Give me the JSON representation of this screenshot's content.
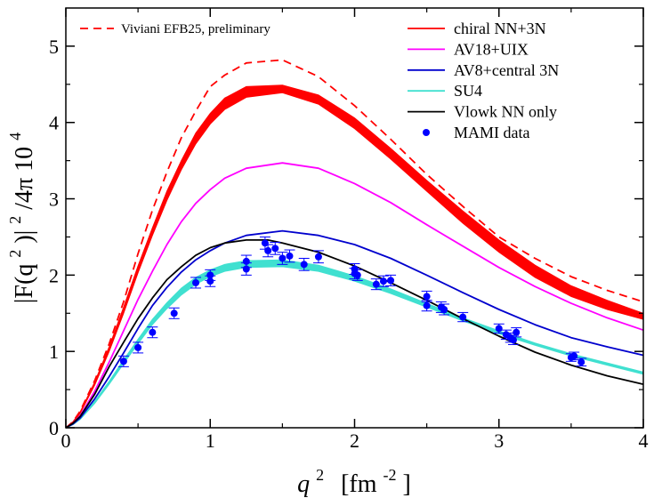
{
  "chart_data": {
    "type": "line",
    "title": "",
    "xlabel": {
      "base": "q",
      "exp": "2",
      "unit_open": "[fm",
      "unit_exp": "-2",
      "unit_close": "]"
    },
    "ylabel": {
      "p1": "|F(q",
      "e1": "2",
      "p2": ")|",
      "e2": "2",
      "p3": "/4π  10",
      "e3": "4"
    },
    "xlim": [
      0,
      4
    ],
    "ylim": [
      0,
      5.5
    ],
    "xticks": [
      0,
      1,
      2,
      3,
      4
    ],
    "yticks": [
      0,
      1,
      2,
      3,
      4,
      5
    ],
    "grid": false,
    "legend_position": "top-right",
    "series": [
      {
        "name": "Viviani EFB25, preliminary",
        "color": "#ff0000",
        "style": "dashed",
        "x": [
          0,
          0.05,
          0.1,
          0.2,
          0.3,
          0.4,
          0.5,
          0.6,
          0.7,
          0.8,
          0.9,
          1.0,
          1.1,
          1.25,
          1.5,
          1.75,
          2.0,
          2.25,
          2.5,
          2.75,
          3.0,
          3.25,
          3.5,
          3.75,
          4.0
        ],
        "y": [
          0,
          0.08,
          0.22,
          0.62,
          1.1,
          1.65,
          2.28,
          2.85,
          3.35,
          3.8,
          4.15,
          4.47,
          4.62,
          4.78,
          4.82,
          4.6,
          4.22,
          3.78,
          3.32,
          2.9,
          2.5,
          2.22,
          1.98,
          1.8,
          1.65
        ]
      },
      {
        "name": "chiral NN+3N",
        "color": "#ff0000",
        "style": "band",
        "x": [
          0,
          0.05,
          0.1,
          0.2,
          0.3,
          0.4,
          0.5,
          0.6,
          0.7,
          0.8,
          0.9,
          1.0,
          1.1,
          1.25,
          1.5,
          1.75,
          2.0,
          2.25,
          2.5,
          2.75,
          3.0,
          3.25,
          3.5,
          3.75,
          4.0
        ],
        "y_low": [
          0,
          0.07,
          0.19,
          0.56,
          1.0,
          1.5,
          2.03,
          2.52,
          2.98,
          3.38,
          3.72,
          3.98,
          4.17,
          4.33,
          4.39,
          4.24,
          3.92,
          3.52,
          3.1,
          2.68,
          2.3,
          1.97,
          1.72,
          1.55,
          1.42
        ],
        "y_high": [
          0,
          0.08,
          0.21,
          0.6,
          1.06,
          1.58,
          2.12,
          2.62,
          3.1,
          3.5,
          3.86,
          4.12,
          4.32,
          4.47,
          4.49,
          4.36,
          4.06,
          3.66,
          3.24,
          2.84,
          2.46,
          2.13,
          1.86,
          1.67,
          1.5
        ]
      },
      {
        "name": "AV18+UIX",
        "color": "#ff00ff",
        "style": "solid",
        "x": [
          0,
          0.05,
          0.1,
          0.2,
          0.3,
          0.4,
          0.5,
          0.6,
          0.7,
          0.8,
          0.9,
          1.0,
          1.1,
          1.25,
          1.5,
          1.75,
          2.0,
          2.25,
          2.5,
          2.75,
          3.0,
          3.25,
          3.5,
          3.75,
          4.0
        ],
        "y": [
          0,
          0.06,
          0.16,
          0.48,
          0.86,
          1.27,
          1.68,
          2.05,
          2.4,
          2.7,
          2.94,
          3.12,
          3.27,
          3.4,
          3.47,
          3.4,
          3.2,
          2.95,
          2.66,
          2.38,
          2.1,
          1.85,
          1.63,
          1.44,
          1.28
        ]
      },
      {
        "name": "AV8+central 3N",
        "color": "#0000cd",
        "style": "solid",
        "x": [
          0,
          0.05,
          0.1,
          0.2,
          0.3,
          0.4,
          0.5,
          0.6,
          0.7,
          0.8,
          0.9,
          1.0,
          1.1,
          1.25,
          1.5,
          1.75,
          2.0,
          2.25,
          2.5,
          2.75,
          3.0,
          3.25,
          3.5,
          3.75,
          4.0
        ],
        "y": [
          0,
          0.05,
          0.13,
          0.38,
          0.67,
          0.98,
          1.3,
          1.6,
          1.84,
          2.04,
          2.2,
          2.32,
          2.42,
          2.52,
          2.58,
          2.52,
          2.4,
          2.22,
          2.0,
          1.77,
          1.55,
          1.35,
          1.18,
          1.06,
          0.95
        ]
      },
      {
        "name": "SU4",
        "color": "#40e0d0",
        "style": "band",
        "x": [
          0,
          0.05,
          0.1,
          0.2,
          0.3,
          0.4,
          0.5,
          0.6,
          0.7,
          0.8,
          0.9,
          1.0,
          1.1,
          1.25,
          1.5,
          1.75,
          2.0,
          2.25,
          2.5,
          2.75,
          3.0,
          3.25,
          3.5,
          3.75,
          4.0
        ],
        "y_low": [
          0,
          0.04,
          0.11,
          0.32,
          0.57,
          0.84,
          1.1,
          1.35,
          1.56,
          1.74,
          1.88,
          1.98,
          2.05,
          2.1,
          2.11,
          2.05,
          1.92,
          1.76,
          1.58,
          1.4,
          1.23,
          1.08,
          0.94,
          0.82,
          0.7
        ],
        "y_high": [
          0,
          0.04,
          0.12,
          0.35,
          0.61,
          0.89,
          1.16,
          1.42,
          1.64,
          1.83,
          1.97,
          2.07,
          2.14,
          2.19,
          2.2,
          2.13,
          1.99,
          1.82,
          1.63,
          1.44,
          1.27,
          1.11,
          0.97,
          0.85,
          0.73
        ]
      },
      {
        "name": "Vlowk NN only",
        "color": "#000000",
        "style": "solid",
        "x": [
          0,
          0.05,
          0.1,
          0.2,
          0.3,
          0.4,
          0.5,
          0.6,
          0.7,
          0.8,
          0.9,
          1.0,
          1.1,
          1.25,
          1.4,
          1.5,
          1.75,
          2.0,
          2.25,
          2.5,
          2.75,
          3.0,
          3.25,
          3.5,
          3.75,
          4.0
        ],
        "y": [
          0,
          0.06,
          0.15,
          0.44,
          0.8,
          1.12,
          1.43,
          1.7,
          1.94,
          2.11,
          2.26,
          2.36,
          2.42,
          2.46,
          2.46,
          2.42,
          2.3,
          2.12,
          1.9,
          1.67,
          1.43,
          1.2,
          0.99,
          0.82,
          0.68,
          0.57
        ]
      }
    ],
    "scatter": {
      "name": "MAMI data",
      "color": "#0000ff",
      "x": [
        0.4,
        0.5,
        0.6,
        0.75,
        0.9,
        1.0,
        1.0,
        1.25,
        1.25,
        1.38,
        1.4,
        1.45,
        1.5,
        1.55,
        1.65,
        1.75,
        2.0,
        2.0,
        2.02,
        2.15,
        2.2,
        2.25,
        2.5,
        2.5,
        2.6,
        2.62,
        2.75,
        3.0,
        3.05,
        3.08,
        3.1,
        3.12,
        3.5,
        3.52,
        3.57
      ],
      "y": [
        0.87,
        1.05,
        1.25,
        1.5,
        1.9,
        2.0,
        1.92,
        2.18,
        2.08,
        2.42,
        2.32,
        2.35,
        2.22,
        2.25,
        2.14,
        2.24,
        2.02,
        2.08,
        2.0,
        1.88,
        1.92,
        1.93,
        1.72,
        1.6,
        1.58,
        1.55,
        1.45,
        1.3,
        1.22,
        1.18,
        1.15,
        1.25,
        0.92,
        0.94,
        0.86
      ],
      "err": [
        0.07,
        0.07,
        0.07,
        0.07,
        0.07,
        0.07,
        0.07,
        0.08,
        0.08,
        0.08,
        0.08,
        0.08,
        0.08,
        0.08,
        0.08,
        0.08,
        0.07,
        0.07,
        0.07,
        0.07,
        0.07,
        0.07,
        0.07,
        0.07,
        0.07,
        0.07,
        0.06,
        0.06,
        0.06,
        0.06,
        0.06,
        0.06,
        0.05,
        0.05,
        0.05
      ]
    }
  }
}
